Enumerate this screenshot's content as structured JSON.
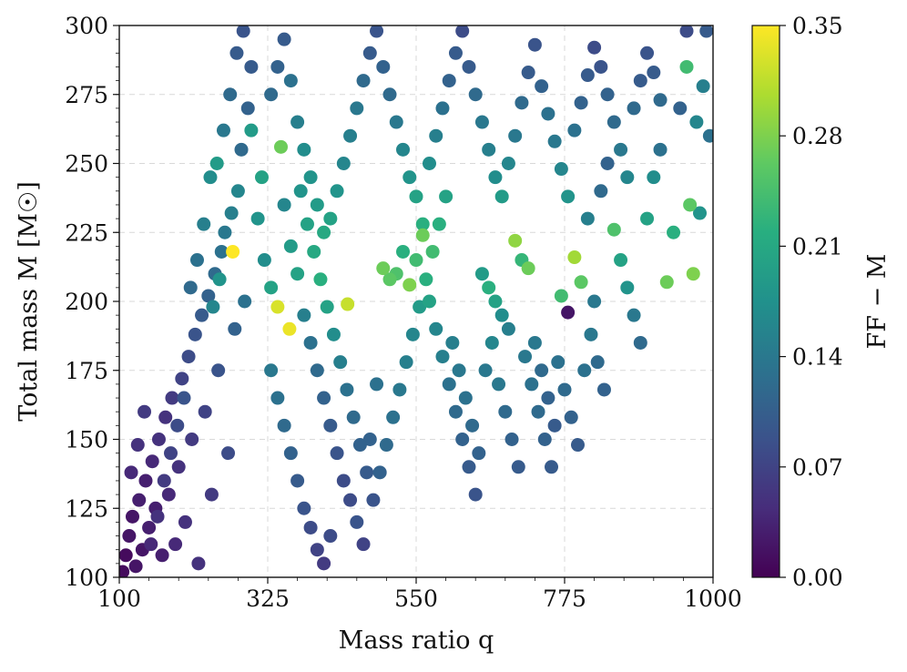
{
  "chart_data": {
    "type": "scatter",
    "title": "",
    "xlabel": "Mass ratio q",
    "ylabel": "Total mass M [M☉]",
    "xlim": [
      100,
      1000
    ],
    "ylim": [
      100,
      300
    ],
    "xticks": [
      100,
      325,
      550,
      775,
      1000
    ],
    "xtick_labels": [
      "100",
      "325",
      "550",
      "775",
      "1000"
    ],
    "yticks": [
      100,
      125,
      150,
      175,
      200,
      225,
      250,
      275,
      300
    ],
    "ytick_labels": [
      "100",
      "125",
      "150",
      "175",
      "200",
      "225",
      "250",
      "275",
      "300"
    ],
    "grid": true,
    "colormap": "viridis",
    "colorbar": {
      "label": "FF − M",
      "range": [
        0.0,
        0.35
      ],
      "ticks": [
        0.0,
        0.07,
        0.14,
        0.21,
        0.28,
        0.35
      ],
      "tick_labels": [
        "0.00",
        "0.07",
        "0.14",
        "0.21",
        "0.28",
        "0.35"
      ]
    },
    "point_density_note": "",
    "points": [
      [
        105,
        102,
        0.01
      ],
      [
        110,
        108,
        0.01
      ],
      [
        115,
        115,
        0.02
      ],
      [
        120,
        122,
        0.02
      ],
      [
        125,
        104,
        0.02
      ],
      [
        130,
        128,
        0.03
      ],
      [
        135,
        110,
        0.02
      ],
      [
        140,
        135,
        0.03
      ],
      [
        145,
        118,
        0.03
      ],
      [
        150,
        142,
        0.04
      ],
      [
        155,
        125,
        0.03
      ],
      [
        160,
        150,
        0.05
      ],
      [
        165,
        108,
        0.03
      ],
      [
        170,
        158,
        0.05
      ],
      [
        175,
        130,
        0.04
      ],
      [
        180,
        165,
        0.06
      ],
      [
        185,
        112,
        0.04
      ],
      [
        190,
        140,
        0.05
      ],
      [
        195,
        172,
        0.07
      ],
      [
        200,
        120,
        0.05
      ],
      [
        205,
        180,
        0.08
      ],
      [
        210,
        150,
        0.06
      ],
      [
        215,
        188,
        0.09
      ],
      [
        220,
        105,
        0.05
      ],
      [
        225,
        195,
        0.1
      ],
      [
        230,
        160,
        0.07
      ],
      [
        235,
        202,
        0.11
      ],
      [
        240,
        130,
        0.06
      ],
      [
        245,
        210,
        0.12
      ],
      [
        250,
        175,
        0.09
      ],
      [
        255,
        218,
        0.13
      ],
      [
        260,
        225,
        0.14
      ],
      [
        265,
        145,
        0.08
      ],
      [
        270,
        232,
        0.15
      ],
      [
        275,
        190,
        0.11
      ],
      [
        280,
        240,
        0.16
      ],
      [
        285,
        255,
        0.12
      ],
      [
        290,
        200,
        0.13
      ],
      [
        295,
        270,
        0.11
      ],
      [
        300,
        285,
        0.1
      ],
      [
        118,
        138,
        0.04
      ],
      [
        128,
        148,
        0.05
      ],
      [
        138,
        160,
        0.06
      ],
      [
        148,
        112,
        0.04
      ],
      [
        158,
        122,
        0.05
      ],
      [
        168,
        135,
        0.06
      ],
      [
        178,
        145,
        0.07
      ],
      [
        188,
        155,
        0.08
      ],
      [
        198,
        165,
        0.09
      ],
      [
        208,
        205,
        0.12
      ],
      [
        218,
        215,
        0.13
      ],
      [
        228,
        228,
        0.15
      ],
      [
        238,
        245,
        0.17
      ],
      [
        248,
        250,
        0.19
      ],
      [
        258,
        262,
        0.14
      ],
      [
        268,
        275,
        0.12
      ],
      [
        278,
        290,
        0.1
      ],
      [
        288,
        298,
        0.09
      ],
      [
        242,
        198,
        0.16
      ],
      [
        252,
        208,
        0.18
      ],
      [
        272,
        218,
        0.35
      ],
      [
        340,
        198,
        0.33
      ],
      [
        358,
        190,
        0.34
      ],
      [
        446,
        199,
        0.32
      ],
      [
        316,
        245,
        0.2
      ],
      [
        345,
        256,
        0.27
      ],
      [
        300,
        262,
        0.19
      ],
      [
        310,
        230,
        0.18
      ],
      [
        320,
        215,
        0.17
      ],
      [
        330,
        205,
        0.2
      ],
      [
        350,
        235,
        0.16
      ],
      [
        360,
        220,
        0.19
      ],
      [
        370,
        210,
        0.2
      ],
      [
        380,
        195,
        0.15
      ],
      [
        390,
        185,
        0.13
      ],
      [
        400,
        175,
        0.12
      ],
      [
        410,
        165,
        0.11
      ],
      [
        420,
        155,
        0.1
      ],
      [
        430,
        145,
        0.09
      ],
      [
        440,
        135,
        0.08
      ],
      [
        450,
        128,
        0.08
      ],
      [
        460,
        120,
        0.09
      ],
      [
        470,
        112,
        0.07
      ],
      [
        480,
        150,
        0.11
      ],
      [
        490,
        170,
        0.13
      ],
      [
        500,
        212,
        0.27
      ],
      [
        510,
        208,
        0.26
      ],
      [
        520,
        210,
        0.25
      ],
      [
        530,
        218,
        0.22
      ],
      [
        540,
        206,
        0.28
      ],
      [
        550,
        215,
        0.24
      ],
      [
        560,
        224,
        0.27
      ],
      [
        570,
        200,
        0.2
      ],
      [
        580,
        190,
        0.16
      ],
      [
        590,
        180,
        0.15
      ],
      [
        600,
        170,
        0.13
      ],
      [
        610,
        160,
        0.12
      ],
      [
        620,
        150,
        0.11
      ],
      [
        630,
        140,
        0.1
      ],
      [
        640,
        130,
        0.09
      ],
      [
        650,
        210,
        0.19
      ],
      [
        660,
        205,
        0.22
      ],
      [
        670,
        200,
        0.2
      ],
      [
        680,
        195,
        0.17
      ],
      [
        690,
        190,
        0.15
      ],
      [
        700,
        222,
        0.29
      ],
      [
        710,
        215,
        0.23
      ],
      [
        720,
        212,
        0.27
      ],
      [
        730,
        185,
        0.14
      ],
      [
        740,
        175,
        0.12
      ],
      [
        750,
        165,
        0.11
      ],
      [
        760,
        155,
        0.1
      ],
      [
        770,
        202,
        0.24
      ],
      [
        780,
        196,
        0.02
      ],
      [
        790,
        216,
        0.3
      ],
      [
        800,
        207,
        0.26
      ],
      [
        810,
        230,
        0.15
      ],
      [
        820,
        200,
        0.14
      ],
      [
        830,
        240,
        0.12
      ],
      [
        840,
        250,
        0.11
      ],
      [
        850,
        226,
        0.25
      ],
      [
        860,
        215,
        0.2
      ],
      [
        870,
        205,
        0.18
      ],
      [
        880,
        195,
        0.14
      ],
      [
        890,
        185,
        0.12
      ],
      [
        900,
        230,
        0.2
      ],
      [
        910,
        245,
        0.17
      ],
      [
        920,
        255,
        0.13
      ],
      [
        930,
        207,
        0.27
      ],
      [
        940,
        225,
        0.22
      ],
      [
        950,
        270,
        0.11
      ],
      [
        960,
        285,
        0.24
      ],
      [
        965,
        235,
        0.26
      ],
      [
        970,
        210,
        0.28
      ],
      [
        975,
        265,
        0.16
      ],
      [
        980,
        232,
        0.18
      ],
      [
        985,
        278,
        0.15
      ],
      [
        990,
        298,
        0.1
      ],
      [
        995,
        260,
        0.13
      ],
      [
        960,
        298,
        0.08
      ],
      [
        330,
        175,
        0.14
      ],
      [
        340,
        165,
        0.13
      ],
      [
        350,
        155,
        0.12
      ],
      [
        360,
        145,
        0.11
      ],
      [
        370,
        135,
        0.1
      ],
      [
        380,
        125,
        0.09
      ],
      [
        390,
        118,
        0.08
      ],
      [
        400,
        110,
        0.07
      ],
      [
        410,
        105,
        0.06
      ],
      [
        420,
        115,
        0.08
      ],
      [
        330,
        275,
        0.12
      ],
      [
        340,
        285,
        0.11
      ],
      [
        350,
        295,
        0.1
      ],
      [
        360,
        280,
        0.13
      ],
      [
        370,
        265,
        0.15
      ],
      [
        380,
        255,
        0.17
      ],
      [
        390,
        245,
        0.18
      ],
      [
        400,
        235,
        0.19
      ],
      [
        410,
        225,
        0.21
      ],
      [
        420,
        230,
        0.2
      ],
      [
        430,
        240,
        0.18
      ],
      [
        440,
        250,
        0.16
      ],
      [
        450,
        260,
        0.15
      ],
      [
        460,
        270,
        0.14
      ],
      [
        470,
        280,
        0.12
      ],
      [
        480,
        290,
        0.1
      ],
      [
        490,
        298,
        0.09
      ],
      [
        500,
        285,
        0.11
      ],
      [
        510,
        275,
        0.12
      ],
      [
        520,
        265,
        0.14
      ],
      [
        530,
        255,
        0.16
      ],
      [
        540,
        245,
        0.18
      ],
      [
        550,
        238,
        0.2
      ],
      [
        560,
        228,
        0.22
      ],
      [
        570,
        250,
        0.17
      ],
      [
        580,
        260,
        0.15
      ],
      [
        590,
        270,
        0.13
      ],
      [
        600,
        280,
        0.11
      ],
      [
        610,
        290,
        0.1
      ],
      [
        620,
        298,
        0.08
      ],
      [
        630,
        285,
        0.1
      ],
      [
        640,
        275,
        0.12
      ],
      [
        650,
        265,
        0.14
      ],
      [
        660,
        255,
        0.15
      ],
      [
        670,
        245,
        0.17
      ],
      [
        680,
        238,
        0.19
      ],
      [
        690,
        250,
        0.16
      ],
      [
        700,
        260,
        0.14
      ],
      [
        710,
        272,
        0.12
      ],
      [
        720,
        283,
        0.1
      ],
      [
        730,
        293,
        0.09
      ],
      [
        740,
        278,
        0.11
      ],
      [
        750,
        268,
        0.13
      ],
      [
        760,
        258,
        0.14
      ],
      [
        770,
        248,
        0.16
      ],
      [
        780,
        238,
        0.18
      ],
      [
        790,
        262,
        0.13
      ],
      [
        800,
        272,
        0.11
      ],
      [
        810,
        282,
        0.1
      ],
      [
        820,
        292,
        0.08
      ],
      [
        830,
        285,
        0.09
      ],
      [
        840,
        275,
        0.11
      ],
      [
        850,
        265,
        0.12
      ],
      [
        860,
        255,
        0.14
      ],
      [
        870,
        245,
        0.16
      ],
      [
        880,
        270,
        0.12
      ],
      [
        890,
        280,
        0.1
      ],
      [
        900,
        290,
        0.09
      ],
      [
        910,
        283,
        0.1
      ],
      [
        920,
        273,
        0.12
      ],
      [
        375,
        240,
        0.18
      ],
      [
        385,
        228,
        0.2
      ],
      [
        395,
        218,
        0.21
      ],
      [
        405,
        208,
        0.22
      ],
      [
        415,
        198,
        0.2
      ],
      [
        425,
        188,
        0.17
      ],
      [
        435,
        178,
        0.15
      ],
      [
        445,
        168,
        0.13
      ],
      [
        455,
        158,
        0.12
      ],
      [
        465,
        148,
        0.11
      ],
      [
        475,
        138,
        0.1
      ],
      [
        485,
        128,
        0.09
      ],
      [
        495,
        138,
        0.11
      ],
      [
        505,
        148,
        0.12
      ],
      [
        515,
        158,
        0.13
      ],
      [
        525,
        168,
        0.14
      ],
      [
        535,
        178,
        0.15
      ],
      [
        545,
        188,
        0.16
      ],
      [
        555,
        198,
        0.19
      ],
      [
        565,
        208,
        0.22
      ],
      [
        575,
        218,
        0.24
      ],
      [
        585,
        228,
        0.22
      ],
      [
        595,
        238,
        0.2
      ],
      [
        605,
        185,
        0.15
      ],
      [
        615,
        175,
        0.14
      ],
      [
        625,
        165,
        0.13
      ],
      [
        635,
        155,
        0.12
      ],
      [
        645,
        145,
        0.11
      ],
      [
        655,
        175,
        0.14
      ],
      [
        665,
        185,
        0.16
      ],
      [
        675,
        170,
        0.14
      ],
      [
        685,
        160,
        0.12
      ],
      [
        695,
        150,
        0.11
      ],
      [
        705,
        140,
        0.1
      ],
      [
        715,
        180,
        0.14
      ],
      [
        725,
        170,
        0.13
      ],
      [
        735,
        160,
        0.12
      ],
      [
        745,
        150,
        0.11
      ],
      [
        755,
        140,
        0.1
      ],
      [
        765,
        178,
        0.13
      ],
      [
        775,
        168,
        0.12
      ],
      [
        785,
        158,
        0.11
      ],
      [
        795,
        148,
        0.1
      ],
      [
        805,
        175,
        0.13
      ],
      [
        815,
        188,
        0.14
      ],
      [
        825,
        178,
        0.12
      ],
      [
        835,
        168,
        0.11
      ]
    ]
  }
}
